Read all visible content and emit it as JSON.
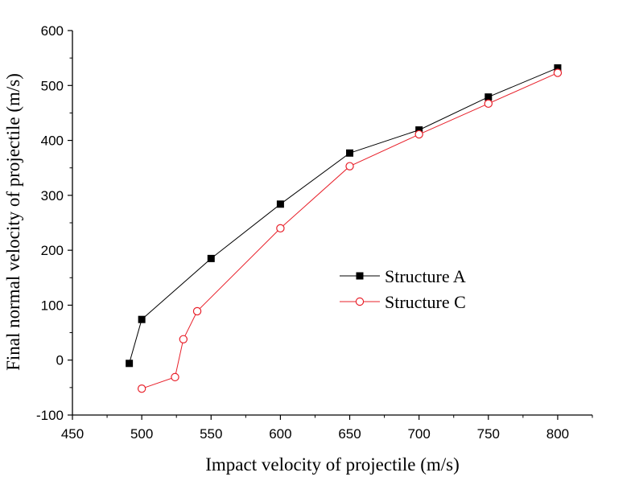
{
  "chart_data": {
    "type": "line",
    "xlabel": "Impact velocity of projectile (m/s)",
    "ylabel": "Final normal velocity of projectile (m/s)",
    "xlim": [
      450,
      825
    ],
    "ylim": [
      -100,
      600
    ],
    "xticks": [
      450,
      500,
      550,
      600,
      650,
      700,
      750,
      800
    ],
    "yticks": [
      -100,
      0,
      100,
      200,
      300,
      400,
      500,
      600
    ],
    "x_tick_labels": [
      "450",
      "500",
      "550",
      "600",
      "650",
      "700",
      "750",
      "800"
    ],
    "y_tick_labels": [
      "-100",
      "0",
      "100",
      "200",
      "300",
      "400",
      "500",
      "600"
    ],
    "grid": false,
    "legend_position": "center-right",
    "series": [
      {
        "name": "Structure A",
        "color": "#000000",
        "marker": "filled-square",
        "x": [
          491,
          500,
          550,
          600,
          650,
          700,
          750,
          800
        ],
        "y": [
          -6,
          74,
          185,
          284,
          377,
          419,
          479,
          532
        ]
      },
      {
        "name": "Structure C",
        "color": "#e8202a",
        "marker": "open-circle",
        "x": [
          500,
          524,
          530,
          540,
          600,
          650,
          700,
          750,
          800
        ],
        "y": [
          -52,
          -31,
          38,
          89,
          240,
          353,
          411,
          467,
          523
        ]
      }
    ]
  }
}
